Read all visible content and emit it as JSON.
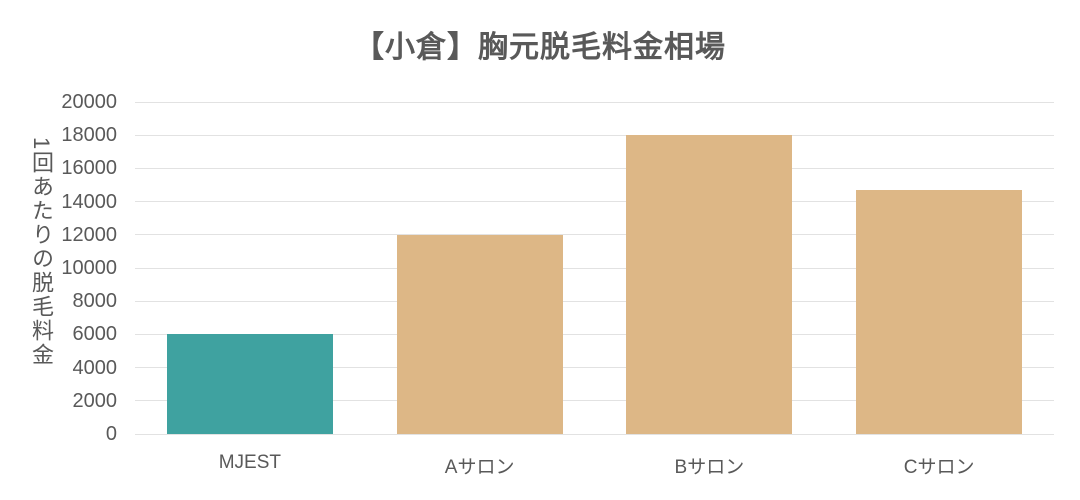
{
  "chart_data": {
    "type": "bar",
    "title": "【小倉】胸元脱毛料金相場",
    "ylabel": "1回あたりの脱毛料金",
    "xlabel": "",
    "categories": [
      "MJEST",
      "Aサロン",
      "Bサロン",
      "Cサロン"
    ],
    "values": [
      6000,
      12000,
      18000,
      14700
    ],
    "bar_colors": [
      "#3fa2a0",
      "#ddb786",
      "#ddb786",
      "#ddb786"
    ],
    "ylim": [
      0,
      20000
    ],
    "ytick_step": 2000,
    "grid": true,
    "legend_position": "none"
  },
  "colors": {
    "highlight_bar": "#3fa2a0",
    "comparison_bar": "#ddb786",
    "gridline": "#e2e2e2",
    "text": "#595959",
    "background": "#ffffff"
  }
}
